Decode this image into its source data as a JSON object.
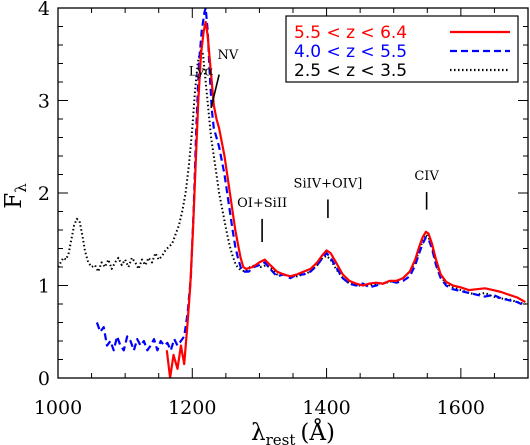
{
  "chart_data": {
    "type": "line",
    "title": "",
    "xlabel": "λrest (Å)",
    "xlabel_main": "λ",
    "xlabel_sub": "rest",
    "xlabel_unit": "(Å)",
    "ylabel": "Fλ",
    "ylabel_main": "F",
    "ylabel_sub": "λ",
    "xlim": [
      1000,
      1700
    ],
    "ylim": [
      0,
      4
    ],
    "x_ticks": [
      1000,
      1200,
      1400,
      1600
    ],
    "y_ticks": [
      0,
      1,
      2,
      3,
      4
    ],
    "grid": false,
    "legend_position": "top-right",
    "series": [
      {
        "name": "5.5 < z < 6.4",
        "color": "#ff0000",
        "dash": "solid",
        "points": [
          [
            1162,
            0.3
          ],
          [
            1167,
            0.0
          ],
          [
            1172,
            0.25
          ],
          [
            1178,
            0.1
          ],
          [
            1183,
            0.35
          ],
          [
            1188,
            0.15
          ],
          [
            1193,
            0.6
          ],
          [
            1197,
            1.0
          ],
          [
            1201,
            1.6
          ],
          [
            1205,
            2.3
          ],
          [
            1209,
            3.0
          ],
          [
            1213,
            3.5
          ],
          [
            1217,
            3.75
          ],
          [
            1220,
            3.85
          ],
          [
            1223,
            3.7
          ],
          [
            1226,
            3.45
          ],
          [
            1229,
            3.2
          ],
          [
            1232,
            2.95
          ],
          [
            1236,
            2.8
          ],
          [
            1240,
            2.7
          ],
          [
            1244,
            2.55
          ],
          [
            1248,
            2.4
          ],
          [
            1252,
            2.2
          ],
          [
            1256,
            2.0
          ],
          [
            1260,
            1.8
          ],
          [
            1264,
            1.6
          ],
          [
            1268,
            1.45
          ],
          [
            1272,
            1.3
          ],
          [
            1276,
            1.2
          ],
          [
            1280,
            1.18
          ],
          [
            1290,
            1.2
          ],
          [
            1300,
            1.25
          ],
          [
            1308,
            1.28
          ],
          [
            1316,
            1.22
          ],
          [
            1326,
            1.15
          ],
          [
            1336,
            1.12
          ],
          [
            1346,
            1.1
          ],
          [
            1356,
            1.12
          ],
          [
            1366,
            1.15
          ],
          [
            1376,
            1.18
          ],
          [
            1386,
            1.25
          ],
          [
            1394,
            1.33
          ],
          [
            1400,
            1.38
          ],
          [
            1406,
            1.35
          ],
          [
            1414,
            1.25
          ],
          [
            1424,
            1.12
          ],
          [
            1434,
            1.05
          ],
          [
            1444,
            1.02
          ],
          [
            1454,
            1.0
          ],
          [
            1464,
            1.02
          ],
          [
            1474,
            1.03
          ],
          [
            1484,
            1.02
          ],
          [
            1494,
            1.05
          ],
          [
            1504,
            1.05
          ],
          [
            1514,
            1.08
          ],
          [
            1524,
            1.15
          ],
          [
            1532,
            1.28
          ],
          [
            1538,
            1.42
          ],
          [
            1543,
            1.52
          ],
          [
            1548,
            1.58
          ],
          [
            1552,
            1.56
          ],
          [
            1557,
            1.45
          ],
          [
            1563,
            1.28
          ],
          [
            1570,
            1.12
          ],
          [
            1578,
            1.04
          ],
          [
            1588,
            1.0
          ],
          [
            1600,
            0.98
          ],
          [
            1612,
            0.95
          ],
          [
            1624,
            0.96
          ],
          [
            1636,
            0.97
          ],
          [
            1648,
            0.95
          ],
          [
            1660,
            0.93
          ],
          [
            1672,
            0.9
          ],
          [
            1684,
            0.87
          ],
          [
            1696,
            0.82
          ]
        ]
      },
      {
        "name": "4.0 < z < 5.5",
        "color": "#0000ff",
        "dash": "dashed",
        "points": [
          [
            1058,
            0.6
          ],
          [
            1063,
            0.5
          ],
          [
            1068,
            0.55
          ],
          [
            1073,
            0.35
          ],
          [
            1078,
            0.4
          ],
          [
            1083,
            0.3
          ],
          [
            1088,
            0.45
          ],
          [
            1093,
            0.35
          ],
          [
            1098,
            0.3
          ],
          [
            1103,
            0.45
          ],
          [
            1108,
            0.4
          ],
          [
            1113,
            0.3
          ],
          [
            1118,
            0.42
          ],
          [
            1123,
            0.35
          ],
          [
            1128,
            0.4
          ],
          [
            1133,
            0.3
          ],
          [
            1138,
            0.35
          ],
          [
            1143,
            0.42
          ],
          [
            1148,
            0.3
          ],
          [
            1153,
            0.4
          ],
          [
            1158,
            0.35
          ],
          [
            1163,
            0.38
          ],
          [
            1168,
            0.3
          ],
          [
            1173,
            0.42
          ],
          [
            1178,
            0.35
          ],
          [
            1183,
            0.4
          ],
          [
            1188,
            0.45
          ],
          [
            1193,
            0.7
          ],
          [
            1198,
            1.1
          ],
          [
            1202,
            1.8
          ],
          [
            1206,
            2.7
          ],
          [
            1210,
            3.4
          ],
          [
            1214,
            3.75
          ],
          [
            1218,
            3.95
          ],
          [
            1220,
            4.0
          ],
          [
            1223,
            3.75
          ],
          [
            1226,
            3.3
          ],
          [
            1229,
            2.9
          ],
          [
            1232,
            2.7
          ],
          [
            1236,
            2.6
          ],
          [
            1240,
            2.5
          ],
          [
            1244,
            2.35
          ],
          [
            1248,
            2.2
          ],
          [
            1252,
            2.0
          ],
          [
            1256,
            1.8
          ],
          [
            1260,
            1.6
          ],
          [
            1264,
            1.42
          ],
          [
            1268,
            1.3
          ],
          [
            1272,
            1.2
          ],
          [
            1276,
            1.15
          ],
          [
            1284,
            1.15
          ],
          [
            1292,
            1.2
          ],
          [
            1300,
            1.22
          ],
          [
            1308,
            1.25
          ],
          [
            1316,
            1.18
          ],
          [
            1326,
            1.1
          ],
          [
            1336,
            1.12
          ],
          [
            1346,
            1.08
          ],
          [
            1356,
            1.12
          ],
          [
            1366,
            1.12
          ],
          [
            1376,
            1.15
          ],
          [
            1386,
            1.22
          ],
          [
            1394,
            1.3
          ],
          [
            1400,
            1.35
          ],
          [
            1406,
            1.3
          ],
          [
            1414,
            1.2
          ],
          [
            1424,
            1.08
          ],
          [
            1434,
            1.02
          ],
          [
            1444,
            1.0
          ],
          [
            1454,
            1.02
          ],
          [
            1464,
            0.98
          ],
          [
            1474,
            1.0
          ],
          [
            1484,
            1.02
          ],
          [
            1494,
            1.05
          ],
          [
            1504,
            1.03
          ],
          [
            1514,
            1.05
          ],
          [
            1524,
            1.1
          ],
          [
            1532,
            1.22
          ],
          [
            1538,
            1.35
          ],
          [
            1543,
            1.45
          ],
          [
            1548,
            1.52
          ],
          [
            1552,
            1.5
          ],
          [
            1557,
            1.4
          ],
          [
            1563,
            1.22
          ],
          [
            1570,
            1.08
          ],
          [
            1578,
            1.0
          ],
          [
            1588,
            0.96
          ],
          [
            1600,
            0.94
          ],
          [
            1612,
            0.92
          ],
          [
            1624,
            0.9
          ],
          [
            1636,
            0.88
          ],
          [
            1648,
            0.9
          ],
          [
            1660,
            0.86
          ],
          [
            1672,
            0.84
          ],
          [
            1684,
            0.82
          ],
          [
            1696,
            0.78
          ]
        ]
      },
      {
        "name": "2.5 < z < 3.5",
        "color": "#000000",
        "dash": "dotted",
        "points": [
          [
            1000,
            1.2
          ],
          [
            1004,
            1.25
          ],
          [
            1008,
            1.3
          ],
          [
            1012,
            1.28
          ],
          [
            1016,
            1.35
          ],
          [
            1020,
            1.5
          ],
          [
            1024,
            1.65
          ],
          [
            1028,
            1.72
          ],
          [
            1032,
            1.7
          ],
          [
            1036,
            1.55
          ],
          [
            1040,
            1.38
          ],
          [
            1045,
            1.25
          ],
          [
            1050,
            1.2
          ],
          [
            1055,
            1.22
          ],
          [
            1060,
            1.15
          ],
          [
            1065,
            1.25
          ],
          [
            1070,
            1.2
          ],
          [
            1075,
            1.28
          ],
          [
            1080,
            1.18
          ],
          [
            1085,
            1.25
          ],
          [
            1090,
            1.3
          ],
          [
            1095,
            1.22
          ],
          [
            1100,
            1.28
          ],
          [
            1105,
            1.2
          ],
          [
            1110,
            1.3
          ],
          [
            1115,
            1.25
          ],
          [
            1120,
            1.18
          ],
          [
            1125,
            1.28
          ],
          [
            1130,
            1.22
          ],
          [
            1135,
            1.3
          ],
          [
            1140,
            1.25
          ],
          [
            1145,
            1.35
          ],
          [
            1150,
            1.28
          ],
          [
            1155,
            1.32
          ],
          [
            1160,
            1.38
          ],
          [
            1165,
            1.42
          ],
          [
            1170,
            1.45
          ],
          [
            1175,
            1.55
          ],
          [
            1180,
            1.65
          ],
          [
            1185,
            1.8
          ],
          [
            1190,
            2.0
          ],
          [
            1195,
            2.3
          ],
          [
            1200,
            2.7
          ],
          [
            1204,
            3.1
          ],
          [
            1208,
            3.4
          ],
          [
            1212,
            3.55
          ],
          [
            1216,
            3.5
          ],
          [
            1220,
            3.2
          ],
          [
            1224,
            2.9
          ],
          [
            1228,
            2.6
          ],
          [
            1232,
            2.4
          ],
          [
            1236,
            2.2
          ],
          [
            1240,
            2.0
          ],
          [
            1244,
            1.85
          ],
          [
            1248,
            1.7
          ],
          [
            1252,
            1.55
          ],
          [
            1256,
            1.42
          ],
          [
            1260,
            1.32
          ],
          [
            1265,
            1.22
          ],
          [
            1270,
            1.18
          ],
          [
            1278,
            1.15
          ],
          [
            1286,
            1.2
          ],
          [
            1294,
            1.22
          ],
          [
            1302,
            1.2
          ],
          [
            1310,
            1.22
          ],
          [
            1318,
            1.18
          ],
          [
            1326,
            1.12
          ],
          [
            1336,
            1.12
          ],
          [
            1346,
            1.1
          ],
          [
            1356,
            1.1
          ],
          [
            1366,
            1.12
          ],
          [
            1376,
            1.15
          ],
          [
            1386,
            1.22
          ],
          [
            1394,
            1.3
          ],
          [
            1400,
            1.32
          ],
          [
            1406,
            1.28
          ],
          [
            1414,
            1.18
          ],
          [
            1424,
            1.08
          ],
          [
            1434,
            1.02
          ],
          [
            1444,
            1.0
          ],
          [
            1454,
            1.0
          ],
          [
            1464,
            1.0
          ],
          [
            1474,
            1.02
          ],
          [
            1484,
            1.02
          ],
          [
            1494,
            1.04
          ],
          [
            1504,
            1.05
          ],
          [
            1514,
            1.08
          ],
          [
            1524,
            1.15
          ],
          [
            1532,
            1.25
          ],
          [
            1538,
            1.38
          ],
          [
            1543,
            1.48
          ],
          [
            1548,
            1.55
          ],
          [
            1552,
            1.52
          ],
          [
            1557,
            1.42
          ],
          [
            1563,
            1.25
          ],
          [
            1570,
            1.1
          ],
          [
            1578,
            1.02
          ],
          [
            1588,
            0.98
          ],
          [
            1600,
            0.95
          ],
          [
            1612,
            0.92
          ],
          [
            1624,
            0.9
          ],
          [
            1636,
            0.92
          ],
          [
            1648,
            0.88
          ],
          [
            1660,
            0.86
          ],
          [
            1672,
            0.85
          ],
          [
            1684,
            0.82
          ],
          [
            1696,
            0.8
          ]
        ]
      }
    ],
    "annotations": [
      {
        "text": "Lyα",
        "x": 1213,
        "y": 3.27,
        "marker": false
      },
      {
        "text": "NV",
        "x": 1253,
        "y": 3.45,
        "marker": true,
        "marker_x": [
          1240,
          1228
        ],
        "marker_y": [
          3.28,
          2.92
        ]
      },
      {
        "text": "OI+SiII",
        "x": 1304,
        "y": 1.85,
        "marker": true,
        "marker_x": [
          1304,
          1304
        ],
        "marker_y": [
          1.72,
          1.47
        ]
      },
      {
        "text": "SiIV+OIV]",
        "x": 1402,
        "y": 2.06,
        "marker": true,
        "marker_x": [
          1402,
          1402
        ],
        "marker_y": [
          1.93,
          1.73
        ]
      },
      {
        "text": "CIV",
        "x": 1549,
        "y": 2.14,
        "marker": true,
        "marker_x": [
          1549,
          1549
        ],
        "marker_y": [
          2.01,
          1.82
        ]
      }
    ]
  }
}
